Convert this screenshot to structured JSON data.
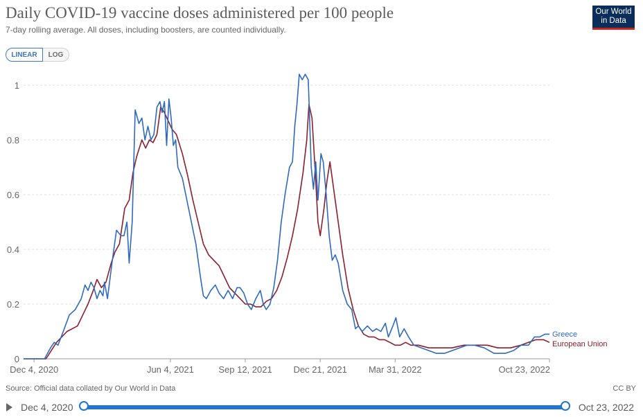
{
  "header": {
    "title": "Daily COVID-19 vaccine doses administered per 100 people",
    "subtitle": "7-day rolling average. All doses, including boosters, are counted individually.",
    "logo_line1": "Our World",
    "logo_line2": "in Data"
  },
  "controls": {
    "linear_label": "LINEAR",
    "log_label": "LOG",
    "active": "LINEAR"
  },
  "footer": {
    "source": "Source: Official data collated by Our World in Data",
    "license": "CC BY"
  },
  "timeline": {
    "start_label": "Dec 4, 2020",
    "end_label": "Oct 23, 2022"
  },
  "colors": {
    "greece": "#2e69c0",
    "eu": "#8b1d2c",
    "accent": "#1f74d4",
    "logo_bg": "#0a2d5a",
    "logo_bar": "#ce261e"
  },
  "chart_data": {
    "type": "line",
    "x_axis_type": "date",
    "xlim": [
      "2020-11-20",
      "2022-10-23"
    ],
    "ylim": [
      0,
      1
    ],
    "y_ticks": [
      0,
      0.2,
      0.4,
      0.6,
      0.8,
      1
    ],
    "y_tick_labels": [
      "0",
      "0.2",
      "0.4",
      "0.6",
      "0.8",
      "1"
    ],
    "x_ticks": [
      "2020-12-04",
      "2021-06-04",
      "2021-09-12",
      "2021-12-21",
      "2022-03-31",
      "2022-10-23"
    ],
    "x_tick_labels": [
      "Dec 4, 2020",
      "Jun 4, 2021",
      "Sep 12, 2021",
      "Dec 21, 2021",
      "Mar 31, 2022",
      "Oct 23, 2022"
    ],
    "grid": "horizontal dashed",
    "legend": "inline labels at line ends",
    "series": [
      {
        "name": "Greece",
        "color": "#2e69c0",
        "points": [
          [
            "2020-11-20",
            0
          ],
          [
            "2020-12-05",
            0
          ],
          [
            "2020-12-18",
            0
          ],
          [
            "2020-12-26",
            0.04
          ],
          [
            "2020-12-31",
            0.06
          ],
          [
            "2021-01-05",
            0.05
          ],
          [
            "2021-01-12",
            0.1
          ],
          [
            "2021-01-20",
            0.16
          ],
          [
            "2021-01-28",
            0.18
          ],
          [
            "2021-02-05",
            0.22
          ],
          [
            "2021-02-10",
            0.27
          ],
          [
            "2021-02-14",
            0.25
          ],
          [
            "2021-02-18",
            0.28
          ],
          [
            "2021-02-22",
            0.26
          ],
          [
            "2021-02-26",
            0.22
          ],
          [
            "2021-03-02",
            0.25
          ],
          [
            "2021-03-06",
            0.23
          ],
          [
            "2021-03-08",
            0.28
          ],
          [
            "2021-03-12",
            0.22
          ],
          [
            "2021-03-18",
            0.35
          ],
          [
            "2021-03-24",
            0.47
          ],
          [
            "2021-03-30",
            0.45
          ],
          [
            "2021-04-03",
            0.45
          ],
          [
            "2021-04-07",
            0.5
          ],
          [
            "2021-04-10",
            0.35
          ],
          [
            "2021-04-14",
            0.5
          ],
          [
            "2021-04-18",
            0.91
          ],
          [
            "2021-04-23",
            0.86
          ],
          [
            "2021-04-27",
            0.88
          ],
          [
            "2021-05-01",
            0.8
          ],
          [
            "2021-05-05",
            0.85
          ],
          [
            "2021-05-09",
            0.8
          ],
          [
            "2021-05-13",
            0.82
          ],
          [
            "2021-05-17",
            0.92
          ],
          [
            "2021-05-21",
            0.94
          ],
          [
            "2021-05-24",
            0.9
          ],
          [
            "2021-05-27",
            0.94
          ],
          [
            "2021-05-30",
            0.78
          ],
          [
            "2021-06-02",
            0.95
          ],
          [
            "2021-06-05",
            0.88
          ],
          [
            "2021-06-08",
            0.78
          ],
          [
            "2021-06-11",
            0.8
          ],
          [
            "2021-06-14",
            0.7
          ],
          [
            "2021-06-20",
            0.66
          ],
          [
            "2021-06-26",
            0.58
          ],
          [
            "2021-07-02",
            0.5
          ],
          [
            "2021-07-08",
            0.42
          ],
          [
            "2021-07-14",
            0.3
          ],
          [
            "2021-07-18",
            0.23
          ],
          [
            "2021-07-22",
            0.22
          ],
          [
            "2021-07-28",
            0.25
          ],
          [
            "2021-08-03",
            0.27
          ],
          [
            "2021-08-08",
            0.24
          ],
          [
            "2021-08-14",
            0.22
          ],
          [
            "2021-08-20",
            0.25
          ],
          [
            "2021-08-26",
            0.22
          ],
          [
            "2021-09-01",
            0.26
          ],
          [
            "2021-09-05",
            0.26
          ],
          [
            "2021-09-10",
            0.24
          ],
          [
            "2021-09-15",
            0.2
          ],
          [
            "2021-09-20",
            0.18
          ],
          [
            "2021-09-26",
            0.22
          ],
          [
            "2021-10-02",
            0.25
          ],
          [
            "2021-10-06",
            0.2
          ],
          [
            "2021-10-10",
            0.18
          ],
          [
            "2021-10-15",
            0.2
          ],
          [
            "2021-10-20",
            0.26
          ],
          [
            "2021-10-25",
            0.36
          ],
          [
            "2021-10-30",
            0.5
          ],
          [
            "2021-11-04",
            0.6
          ],
          [
            "2021-11-10",
            0.7
          ],
          [
            "2021-11-14",
            0.72
          ],
          [
            "2021-11-17",
            0.85
          ],
          [
            "2021-11-20",
            0.93
          ],
          [
            "2021-11-23",
            1.04
          ],
          [
            "2021-11-27",
            1.02
          ],
          [
            "2021-12-01",
            1.04
          ],
          [
            "2021-12-05",
            1.02
          ],
          [
            "2021-12-09",
            0.7
          ],
          [
            "2021-12-12",
            0.62
          ],
          [
            "2021-12-15",
            0.72
          ],
          [
            "2021-12-18",
            0.58
          ],
          [
            "2021-12-22",
            0.75
          ],
          [
            "2021-12-25",
            0.72
          ],
          [
            "2021-12-29",
            0.6
          ],
          [
            "2022-01-02",
            0.45
          ],
          [
            "2022-01-06",
            0.36
          ],
          [
            "2022-01-10",
            0.38
          ],
          [
            "2022-01-14",
            0.35
          ],
          [
            "2022-01-20",
            0.25
          ],
          [
            "2022-01-26",
            0.2
          ],
          [
            "2022-02-01",
            0.18
          ],
          [
            "2022-02-06",
            0.11
          ],
          [
            "2022-02-10",
            0.12
          ],
          [
            "2022-02-15",
            0.1
          ],
          [
            "2022-02-22",
            0.12
          ],
          [
            "2022-03-01",
            0.1
          ],
          [
            "2022-03-06",
            0.11
          ],
          [
            "2022-03-12",
            0.1
          ],
          [
            "2022-03-18",
            0.13
          ],
          [
            "2022-03-22",
            0.08
          ],
          [
            "2022-03-28",
            0.12
          ],
          [
            "2022-04-01",
            0.15
          ],
          [
            "2022-04-06",
            0.08
          ],
          [
            "2022-04-12",
            0.11
          ],
          [
            "2022-04-18",
            0.08
          ],
          [
            "2022-04-25",
            0.05
          ],
          [
            "2022-05-05",
            0.04
          ],
          [
            "2022-05-15",
            0.03
          ],
          [
            "2022-05-25",
            0.02
          ],
          [
            "2022-06-05",
            0.02
          ],
          [
            "2022-06-15",
            0.03
          ],
          [
            "2022-06-25",
            0.04
          ],
          [
            "2022-07-05",
            0.05
          ],
          [
            "2022-07-15",
            0.05
          ],
          [
            "2022-07-28",
            0.04
          ],
          [
            "2022-08-10",
            0.02
          ],
          [
            "2022-08-25",
            0.02
          ],
          [
            "2022-09-05",
            0.03
          ],
          [
            "2022-09-15",
            0.05
          ],
          [
            "2022-09-25",
            0.05
          ],
          [
            "2022-10-03",
            0.08
          ],
          [
            "2022-10-10",
            0.08
          ],
          [
            "2022-10-17",
            0.09
          ],
          [
            "2022-10-23",
            0.09
          ]
        ]
      },
      {
        "name": "European Union",
        "color": "#8b1d2c",
        "points": [
          [
            "2020-11-20",
            0
          ],
          [
            "2020-12-05",
            0
          ],
          [
            "2020-12-20",
            0
          ],
          [
            "2020-12-27",
            0.03
          ],
          [
            "2021-01-03",
            0.06
          ],
          [
            "2021-01-10",
            0.08
          ],
          [
            "2021-01-17",
            0.1
          ],
          [
            "2021-01-24",
            0.11
          ],
          [
            "2021-01-31",
            0.12
          ],
          [
            "2021-02-07",
            0.16
          ],
          [
            "2021-02-14",
            0.2
          ],
          [
            "2021-02-21",
            0.25
          ],
          [
            "2021-02-26",
            0.29
          ],
          [
            "2021-03-04",
            0.26
          ],
          [
            "2021-03-10",
            0.28
          ],
          [
            "2021-03-17",
            0.35
          ],
          [
            "2021-03-22",
            0.39
          ],
          [
            "2021-03-28",
            0.42
          ],
          [
            "2021-04-04",
            0.55
          ],
          [
            "2021-04-10",
            0.58
          ],
          [
            "2021-04-15",
            0.68
          ],
          [
            "2021-04-20",
            0.74
          ],
          [
            "2021-04-27",
            0.8
          ],
          [
            "2021-05-02",
            0.77
          ],
          [
            "2021-05-07",
            0.8
          ],
          [
            "2021-05-12",
            0.79
          ],
          [
            "2021-05-17",
            0.82
          ],
          [
            "2021-05-22",
            0.92
          ],
          [
            "2021-05-27",
            0.9
          ],
          [
            "2021-06-01",
            0.87
          ],
          [
            "2021-06-06",
            0.84
          ],
          [
            "2021-06-12",
            0.82
          ],
          [
            "2021-06-20",
            0.75
          ],
          [
            "2021-06-27",
            0.67
          ],
          [
            "2021-07-04",
            0.58
          ],
          [
            "2021-07-11",
            0.5
          ],
          [
            "2021-07-18",
            0.42
          ],
          [
            "2021-07-25",
            0.38
          ],
          [
            "2021-08-01",
            0.36
          ],
          [
            "2021-08-08",
            0.34
          ],
          [
            "2021-08-15",
            0.3
          ],
          [
            "2021-08-22",
            0.26
          ],
          [
            "2021-08-29",
            0.24
          ],
          [
            "2021-09-05",
            0.22
          ],
          [
            "2021-09-12",
            0.2
          ],
          [
            "2021-09-19",
            0.2
          ],
          [
            "2021-09-26",
            0.19
          ],
          [
            "2021-10-03",
            0.19
          ],
          [
            "2021-10-10",
            0.21
          ],
          [
            "2021-10-17",
            0.22
          ],
          [
            "2021-10-24",
            0.25
          ],
          [
            "2021-10-31",
            0.3
          ],
          [
            "2021-11-07",
            0.37
          ],
          [
            "2021-11-14",
            0.45
          ],
          [
            "2021-11-21",
            0.55
          ],
          [
            "2021-11-28",
            0.68
          ],
          [
            "2021-12-03",
            0.8
          ],
          [
            "2021-12-06",
            0.93
          ],
          [
            "2021-12-10",
            0.88
          ],
          [
            "2021-12-14",
            0.7
          ],
          [
            "2021-12-18",
            0.5
          ],
          [
            "2021-12-21",
            0.45
          ],
          [
            "2021-12-26",
            0.55
          ],
          [
            "2021-12-30",
            0.65
          ],
          [
            "2022-01-03",
            0.72
          ],
          [
            "2022-01-08",
            0.62
          ],
          [
            "2022-01-14",
            0.5
          ],
          [
            "2022-01-20",
            0.38
          ],
          [
            "2022-01-27",
            0.26
          ],
          [
            "2022-02-03",
            0.18
          ],
          [
            "2022-02-10",
            0.12
          ],
          [
            "2022-02-17",
            0.09
          ],
          [
            "2022-02-24",
            0.08
          ],
          [
            "2022-03-03",
            0.08
          ],
          [
            "2022-03-10",
            0.07
          ],
          [
            "2022-03-17",
            0.07
          ],
          [
            "2022-03-24",
            0.06
          ],
          [
            "2022-03-31",
            0.05
          ],
          [
            "2022-04-07",
            0.05
          ],
          [
            "2022-04-14",
            0.06
          ],
          [
            "2022-04-21",
            0.05
          ],
          [
            "2022-05-01",
            0.05
          ],
          [
            "2022-05-15",
            0.04
          ],
          [
            "2022-06-01",
            0.04
          ],
          [
            "2022-06-15",
            0.04
          ],
          [
            "2022-07-01",
            0.05
          ],
          [
            "2022-07-15",
            0.05
          ],
          [
            "2022-08-01",
            0.05
          ],
          [
            "2022-08-15",
            0.04
          ],
          [
            "2022-09-01",
            0.04
          ],
          [
            "2022-09-15",
            0.05
          ],
          [
            "2022-09-25",
            0.06
          ],
          [
            "2022-10-05",
            0.07
          ],
          [
            "2022-10-15",
            0.07
          ],
          [
            "2022-10-23",
            0.06
          ]
        ]
      }
    ]
  }
}
